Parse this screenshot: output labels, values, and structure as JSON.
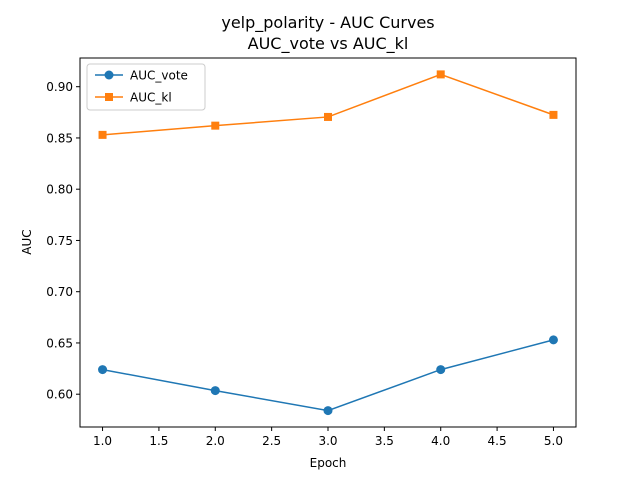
{
  "chart_data": {
    "type": "line",
    "title": "yelp_polarity - AUC Curves",
    "subtitle": "AUC_vote vs AUC_kl",
    "xlabel": "Epoch",
    "ylabel": "AUC",
    "x": [
      1.0,
      2.0,
      3.0,
      4.0,
      5.0
    ],
    "series": [
      {
        "name": "AUC_vote",
        "values": [
          0.624,
          0.6035,
          0.584,
          0.624,
          0.653
        ],
        "color": "#1f77b4",
        "marker": "circle"
      },
      {
        "name": "AUC_kl",
        "values": [
          0.853,
          0.862,
          0.8705,
          0.912,
          0.8725
        ],
        "color": "#ff7f0e",
        "marker": "square"
      }
    ],
    "xlim": [
      0.8,
      5.2
    ],
    "ylim": [
      0.568,
      0.928
    ],
    "xticks": [
      "1.0",
      "1.5",
      "2.0",
      "2.5",
      "3.0",
      "3.5",
      "4.0",
      "4.5",
      "5.0"
    ],
    "yticks": [
      "0.60",
      "0.65",
      "0.70",
      "0.75",
      "0.80",
      "0.85",
      "0.90"
    ],
    "grid": false,
    "legend": "top-left"
  }
}
